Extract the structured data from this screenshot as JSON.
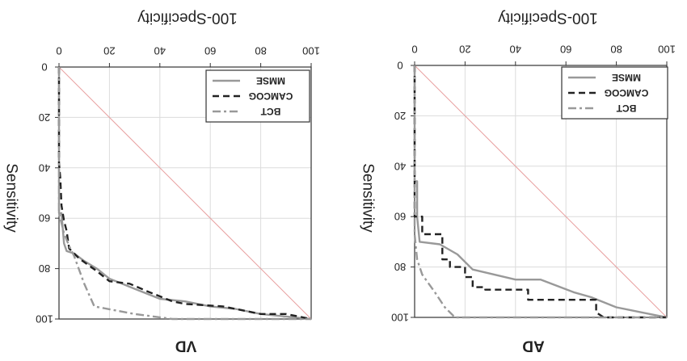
{
  "chart_data": [
    {
      "type": "line",
      "panel_label": "VD",
      "xlabel": "100-Specificity",
      "ylabel": "Sensitivity",
      "xlim": [
        0,
        100
      ],
      "ylim": [
        0,
        100
      ],
      "x_ticks": [
        "0",
        "20",
        "40",
        "60",
        "80",
        "100"
      ],
      "y_ticks": [
        "0",
        "20",
        "40",
        "60",
        "80",
        "100"
      ],
      "grid": true,
      "mirrored": true,
      "legend_position": "top-right",
      "series": [
        {
          "name": "MMSE",
          "style": "solid",
          "color": "#999999",
          "points": [
            [
              0,
              0
            ],
            [
              0,
              58
            ],
            [
              1,
              58
            ],
            [
              2,
              70
            ],
            [
              3,
              73
            ],
            [
              6,
              74
            ],
            [
              10,
              77
            ],
            [
              15,
              80
            ],
            [
              20,
              84
            ],
            [
              25,
              86
            ],
            [
              30,
              88
            ],
            [
              40,
              92
            ],
            [
              50,
              93
            ],
            [
              55,
              94
            ],
            [
              60,
              95
            ],
            [
              70,
              96
            ],
            [
              80,
              98
            ],
            [
              90,
              99
            ],
            [
              100,
              100
            ]
          ]
        },
        {
          "name": "CAMCOG",
          "style": "dashed",
          "color": "#222222",
          "points": [
            [
              0,
              0
            ],
            [
              0,
              38
            ],
            [
              0.5,
              44
            ],
            [
              1,
              55
            ],
            [
              2,
              61
            ],
            [
              3,
              65
            ],
            [
              4,
              72
            ],
            [
              6,
              74
            ],
            [
              8,
              76
            ],
            [
              15,
              81
            ],
            [
              20,
              85
            ],
            [
              28,
              86
            ],
            [
              35,
              89
            ],
            [
              45,
              93
            ],
            [
              50,
              94
            ],
            [
              65,
              95
            ],
            [
              70,
              96
            ],
            [
              80,
              98
            ],
            [
              90,
              98
            ],
            [
              95,
              99
            ],
            [
              100,
              100
            ]
          ]
        },
        {
          "name": "BCT",
          "style": "dashdot",
          "color": "#999999",
          "points": [
            [
              0,
              0
            ],
            [
              0,
              58
            ],
            [
              2,
              66
            ],
            [
              4,
              71
            ],
            [
              6,
              75
            ],
            [
              10,
              86
            ],
            [
              14,
              95
            ],
            [
              30,
              98
            ],
            [
              45,
              100
            ],
            [
              100,
              100
            ]
          ]
        }
      ]
    },
    {
      "type": "line",
      "panel_label": "AD",
      "xlabel": "100-Specificity",
      "ylabel": "Sensitivity",
      "xlim": [
        0,
        100
      ],
      "ylim": [
        0,
        100
      ],
      "x_ticks": [
        "0",
        "20",
        "40",
        "60",
        "80",
        "100"
      ],
      "y_ticks": [
        "0",
        "20",
        "40",
        "60",
        "80",
        "100"
      ],
      "grid": true,
      "mirrored": true,
      "legend_position": "top-right",
      "series": [
        {
          "name": "MMSE",
          "style": "solid",
          "color": "#999999",
          "points": [
            [
              0,
              0
            ],
            [
              0,
              46
            ],
            [
              1,
              46
            ],
            [
              1,
              60
            ],
            [
              2,
              70
            ],
            [
              10,
              71
            ],
            [
              17,
              75
            ],
            [
              23,
              81
            ],
            [
              40,
              85
            ],
            [
              50,
              85
            ],
            [
              63,
              90
            ],
            [
              70,
              92
            ],
            [
              80,
              96
            ],
            [
              90,
              98
            ],
            [
              100,
              100
            ]
          ]
        },
        {
          "name": "CAMCOG",
          "style": "dashed",
          "color": "#222222",
          "points": [
            [
              0,
              0
            ],
            [
              0,
              60
            ],
            [
              3,
              60
            ],
            [
              3,
              67
            ],
            [
              11,
              67
            ],
            [
              11,
              77
            ],
            [
              14,
              77
            ],
            [
              14,
              80
            ],
            [
              20,
              80
            ],
            [
              20,
              84
            ],
            [
              23,
              84
            ],
            [
              23,
              88
            ],
            [
              28,
              88
            ],
            [
              28,
              89
            ],
            [
              45,
              89
            ],
            [
              45,
              93
            ],
            [
              72,
              93
            ],
            [
              72,
              98
            ],
            [
              75,
              100
            ],
            [
              100,
              100
            ]
          ]
        },
        {
          "name": "BCT",
          "style": "dashdot",
          "color": "#999999",
          "points": [
            [
              0,
              0
            ],
            [
              0,
              67
            ],
            [
              1,
              77
            ],
            [
              3,
              83
            ],
            [
              8,
              90
            ],
            [
              12,
              96
            ],
            [
              16,
              100
            ],
            [
              100,
              100
            ]
          ]
        }
      ]
    }
  ]
}
